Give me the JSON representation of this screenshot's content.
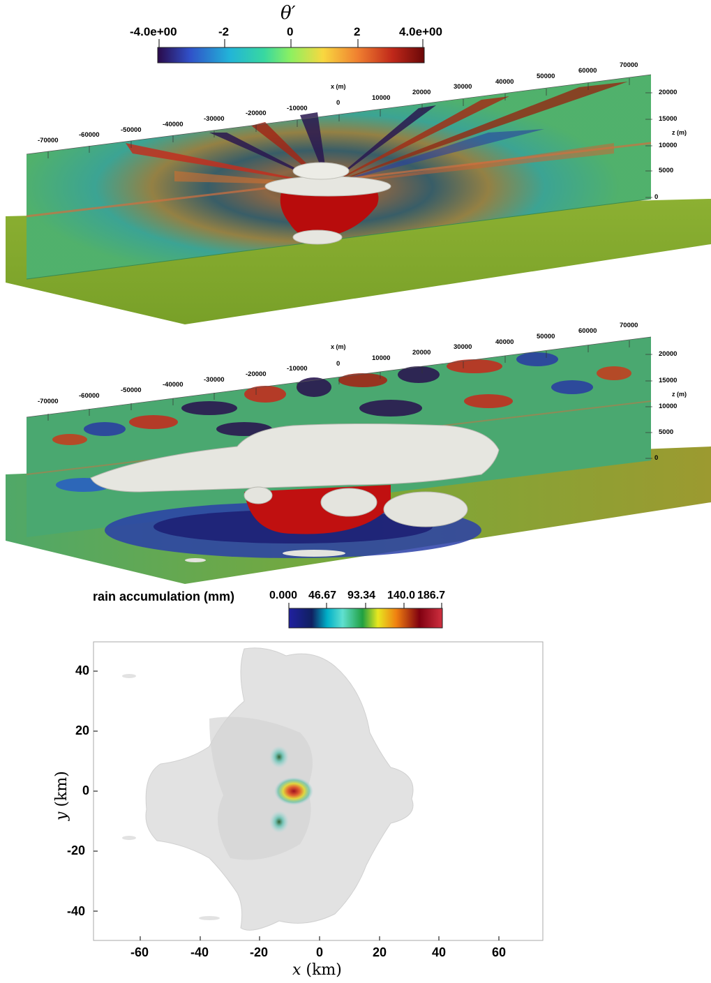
{
  "theta_colorbar": {
    "title": "θ′",
    "ticks": [
      "-4.0e+00",
      "-2",
      "0",
      "2",
      "4.0e+00"
    ],
    "colors": [
      "#2a0a4a",
      "#3050c8",
      "#22b4d8",
      "#38d8a0",
      "#8ef060",
      "#f8d840",
      "#f08030",
      "#c0281a",
      "#6a0808"
    ]
  },
  "panel_top": {
    "x_axis_label": "x (m)",
    "x_ticks": [
      "-70000",
      "-60000",
      "-50000",
      "-40000",
      "-30000",
      "-20000",
      "-10000",
      "0",
      "10000",
      "20000",
      "30000",
      "40000",
      "50000",
      "60000",
      "70000"
    ],
    "z_axis_label": "z (m)",
    "z_ticks": [
      "20000",
      "15000",
      "10000",
      "5000",
      "0"
    ]
  },
  "panel_middle": {
    "x_axis_label": "x (m)",
    "x_ticks": [
      "-70000",
      "-60000",
      "-50000",
      "-40000",
      "-30000",
      "-20000",
      "-10000",
      "0",
      "10000",
      "20000",
      "30000",
      "40000",
      "50000",
      "60000",
      "70000"
    ],
    "z_axis_label": "z (m)",
    "z_ticks": [
      "20000",
      "15000",
      "10000",
      "5000",
      "0"
    ]
  },
  "rain_colorbar": {
    "title": "rain accumulation (mm)",
    "ticks": [
      "0.000",
      "46.67",
      "93.34",
      "140.0",
      "186.7"
    ],
    "colors": [
      "#2020a0",
      "#00b0c8",
      "#60e0d0",
      "#20a040",
      "#e8e820",
      "#f08010",
      "#800010",
      "#d03040"
    ]
  },
  "rain_map": {
    "x_ticks": [
      "-60",
      "-40",
      "-20",
      "0",
      "20",
      "40",
      "60"
    ],
    "y_ticks": [
      "40",
      "20",
      "0",
      "-20",
      "-40"
    ],
    "x_label_var": "x",
    "x_label_unit": "(km)",
    "y_label_var": "y",
    "y_label_unit": "(km)",
    "x_range": [
      -76,
      75
    ],
    "y_range": [
      -50,
      50
    ]
  }
}
